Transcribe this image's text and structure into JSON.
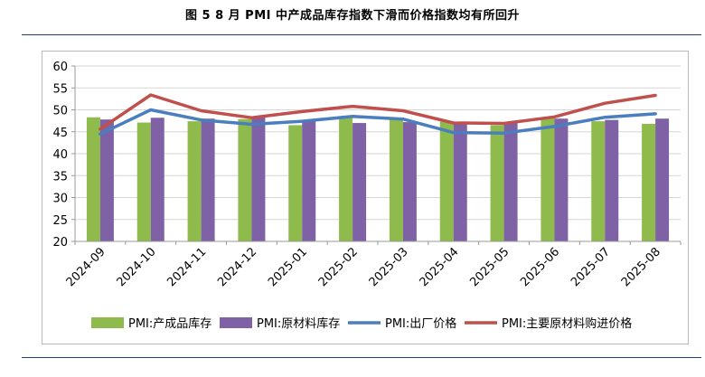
{
  "figure": {
    "title": "图 5    8 月 PMI 中产成品库存指数下滑而价格指数均有所回升"
  },
  "chart_data": {
    "type": "bar",
    "categories": [
      "2024-09",
      "2024-10",
      "2024-11",
      "2024-12",
      "2025-01",
      "2025-02",
      "2025-03",
      "2025-04",
      "2025-05",
      "2025-06",
      "2025-07",
      "2025-08"
    ],
    "ylim": [
      20,
      60
    ],
    "yticks": [
      20,
      25,
      30,
      35,
      40,
      45,
      50,
      55,
      60
    ],
    "grid": true,
    "legend_position": "bottom",
    "bar_series": [
      {
        "name": "PMI:产成品库存",
        "color": "#8fbb4c",
        "values": [
          48.3,
          47.1,
          47.4,
          47.9,
          46.5,
          48.2,
          48.0,
          47.3,
          46.5,
          48.1,
          47.4,
          46.8
        ]
      },
      {
        "name": "PMI:原材料库存",
        "color": "#7f62a6",
        "values": [
          47.8,
          48.2,
          48.0,
          48.3,
          47.4,
          47.0,
          47.2,
          47.0,
          47.0,
          48.0,
          47.7,
          48.0
        ]
      }
    ],
    "line_series": [
      {
        "name": "PMI:出厂价格",
        "color": "#4a7ebf",
        "values": [
          44.5,
          50.0,
          47.7,
          46.7,
          47.4,
          48.5,
          47.9,
          44.8,
          44.7,
          46.2,
          48.3,
          49.1
        ]
      },
      {
        "name": "PMI:主要原材料购进价格",
        "color": "#c0504d",
        "values": [
          45.6,
          53.4,
          49.8,
          48.2,
          49.6,
          50.8,
          49.8,
          47.0,
          46.9,
          48.4,
          51.5,
          53.3
        ]
      }
    ]
  }
}
